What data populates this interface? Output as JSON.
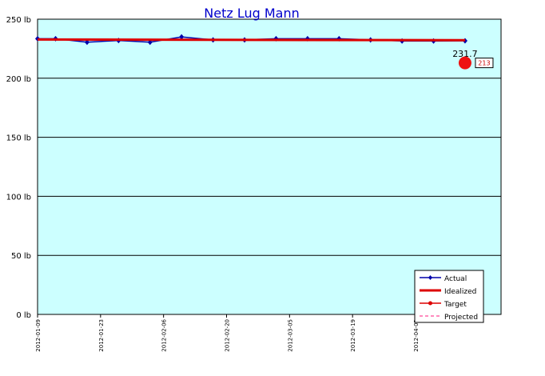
{
  "chart_data": {
    "type": "line",
    "title": "Netz Lug Mann",
    "x_format": "date",
    "x_ticks": [
      "2012-01-09",
      "2012-01-23",
      "2012-02-06",
      "2012-02-20",
      "2012-03-05",
      "2012-03-19",
      "2012-04-02"
    ],
    "xlim": [
      "2012-01-09",
      "2012-04-21"
    ],
    "ylim": [
      0,
      250
    ],
    "y_ticks": [
      0,
      50,
      100,
      150,
      200,
      250
    ],
    "y_tick_labels": [
      "0 lb",
      "50 lb",
      "100 lb",
      "150 lb",
      "200 lb",
      "250 lb"
    ],
    "grid": "horizontal",
    "legend_position": "bottom-right",
    "series": [
      {
        "name": "Actual",
        "color": "#0000aa",
        "style": "line-diamond",
        "points": [
          [
            "2012-01-09",
            233.5
          ],
          [
            "2012-01-13",
            233.5
          ],
          [
            "2012-01-20",
            230.5
          ],
          [
            "2012-01-27",
            232.0
          ],
          [
            "2012-02-03",
            230.5
          ],
          [
            "2012-02-10",
            235.0
          ],
          [
            "2012-02-17",
            232.5
          ],
          [
            "2012-02-24",
            232.5
          ],
          [
            "2012-03-02",
            233.5
          ],
          [
            "2012-03-09",
            233.5
          ],
          [
            "2012-03-16",
            233.5
          ],
          [
            "2012-03-23",
            232.5
          ],
          [
            "2012-03-30",
            231.5
          ],
          [
            "2012-04-06",
            231.5
          ],
          [
            "2012-04-13",
            231.7
          ]
        ]
      },
      {
        "name": "Idealized",
        "color": "#dd0000",
        "style": "thick-line",
        "points": [
          [
            "2012-01-09",
            232.8
          ],
          [
            "2012-04-13",
            232.2
          ]
        ]
      },
      {
        "name": "Target",
        "color": "#dd0000",
        "style": "line-dot",
        "points": []
      },
      {
        "name": "Projected",
        "color": "#ff66aa",
        "style": "dashed",
        "points": []
      }
    ],
    "annotations": {
      "last_value_label": "231.7",
      "target_value": 213,
      "target_date": "2012-04-13",
      "target_label": "213"
    },
    "colors": {
      "plot_background": "#ccffff",
      "grid": "#000000"
    }
  }
}
